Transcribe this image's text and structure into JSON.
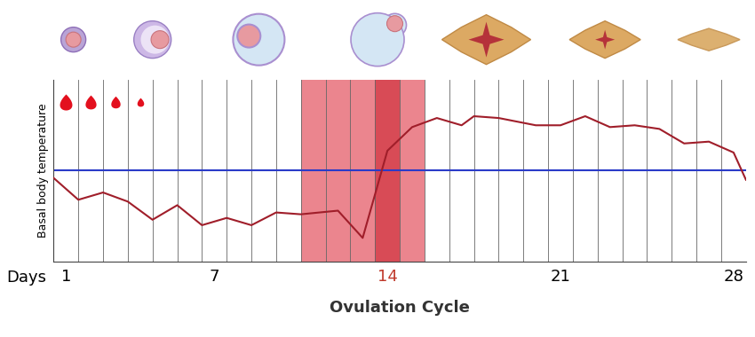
{
  "chart_data": {
    "type": "line",
    "xlabel": "Ovulation Cycle",
    "tick_row_label": "Days",
    "ylabel": "Basal body temperature",
    "x": [
      0.5,
      1.5,
      2.5,
      3.5,
      4.5,
      5.5,
      6.5,
      7.5,
      8.5,
      9.5,
      10.5,
      12,
      13,
      14,
      15,
      16,
      17,
      17.5,
      18.5,
      20,
      21,
      22,
      23,
      24,
      25,
      26,
      27,
      28,
      28.5
    ],
    "values": [
      46,
      34,
      38,
      33,
      23,
      31,
      20,
      24,
      20,
      27,
      26,
      28,
      13,
      61,
      74,
      79,
      75,
      80,
      79,
      75,
      75,
      80,
      74,
      75,
      73,
      65,
      66,
      60,
      45
    ],
    "color": "#a01e2a",
    "xlim": [
      0.5,
      28.5
    ],
    "xticks": [
      1,
      7,
      14,
      21,
      28
    ],
    "ylim": [
      0,
      100
    ],
    "yticks": [],
    "tick_labels": "x",
    "grid": true,
    "coverline": {
      "value": 50,
      "color": "#2a3bc8"
    },
    "fertile_window": {
      "range": [
        10.5,
        15.5
      ],
      "color": "#e8707a"
    },
    "ovulation": {
      "day": 14,
      "color": "#d64550"
    },
    "menstruation_days": [
      1,
      2,
      3,
      4
    ]
  }
}
